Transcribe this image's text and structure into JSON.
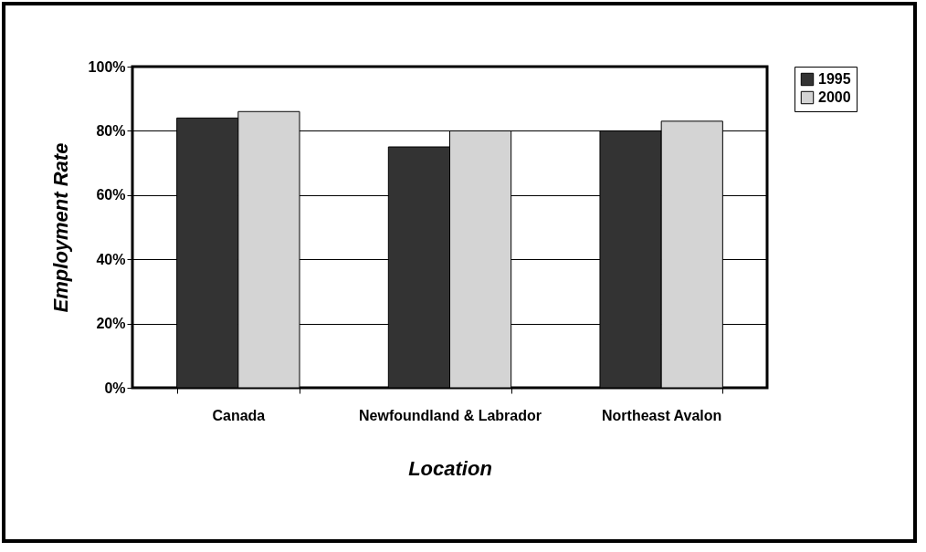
{
  "chart_data": {
    "type": "bar",
    "xlabel": "Location",
    "ylabel": "Employment Rate",
    "categories": [
      "Canada",
      "Newfoundland & Labrador",
      "Northeast Avalon"
    ],
    "series": [
      {
        "name": "1995",
        "color": "#333333",
        "values": [
          84,
          75,
          80
        ]
      },
      {
        "name": "2000",
        "color": "#d4d4d4",
        "values": [
          86,
          80,
          83
        ]
      }
    ],
    "ylim": [
      0,
      100
    ],
    "yticks": [
      {
        "value": 0,
        "label": "0%"
      },
      {
        "value": 20,
        "label": "20%"
      },
      {
        "value": 40,
        "label": "40%"
      },
      {
        "value": 60,
        "label": "60%"
      },
      {
        "value": 80,
        "label": "80%"
      },
      {
        "value": 100,
        "label": "100%"
      }
    ],
    "grid": "y",
    "legend": "right"
  }
}
